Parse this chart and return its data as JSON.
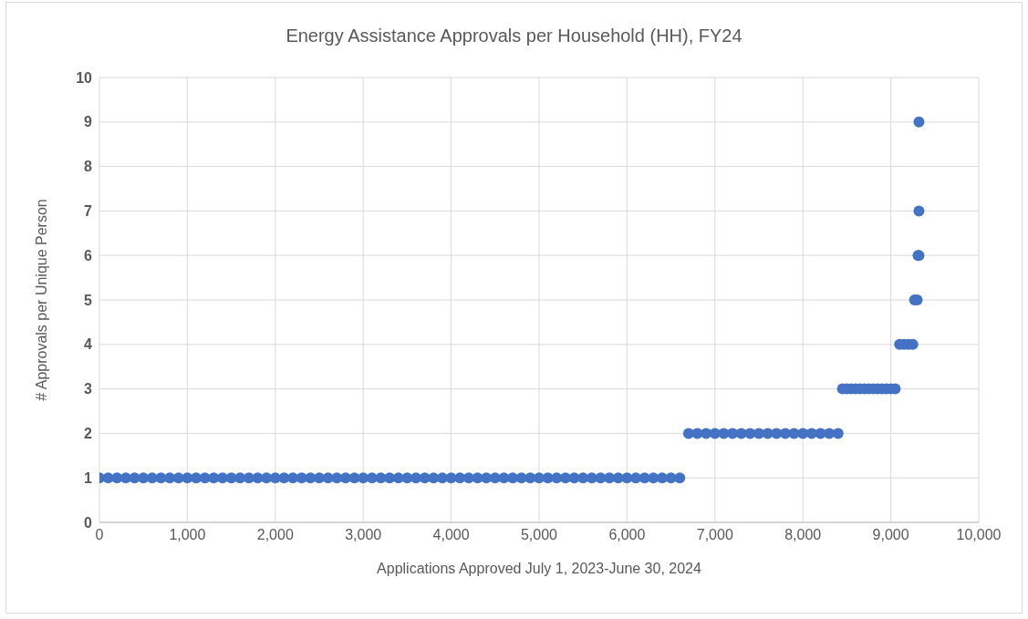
{
  "chart_data": {
    "type": "scatter",
    "title": "Energy Assistance Approvals per Household (HH), FY24",
    "xlabel": "Applications Approved July 1, 2023-June 30, 2024",
    "ylabel": "# Approvals per Unique Person",
    "x": [
      0,
      100,
      200,
      300,
      400,
      500,
      600,
      700,
      800,
      900,
      1000,
      1100,
      1200,
      1300,
      1400,
      1500,
      1600,
      1700,
      1800,
      1900,
      2000,
      2100,
      2200,
      2300,
      2400,
      2500,
      2600,
      2700,
      2800,
      2900,
      3000,
      3100,
      3200,
      3300,
      3400,
      3500,
      3600,
      3700,
      3800,
      3900,
      4000,
      4100,
      4200,
      4300,
      4400,
      4500,
      4600,
      4700,
      4800,
      4900,
      5000,
      5100,
      5200,
      5300,
      5400,
      5500,
      5600,
      5700,
      5800,
      5900,
      6000,
      6100,
      6200,
      6300,
      6400,
      6500,
      6600,
      6700,
      6800,
      6900,
      7000,
      7100,
      7200,
      7300,
      7400,
      7500,
      7600,
      7700,
      7800,
      7900,
      8000,
      8100,
      8200,
      8300,
      8400,
      8450,
      8500,
      8550,
      8600,
      8650,
      8700,
      8750,
      8800,
      8850,
      8900,
      8950,
      9000,
      9050,
      9100,
      9150,
      9200,
      9250,
      9270,
      9300,
      9310,
      9320,
      9320,
      9320
    ],
    "values": [
      1,
      1,
      1,
      1,
      1,
      1,
      1,
      1,
      1,
      1,
      1,
      1,
      1,
      1,
      1,
      1,
      1,
      1,
      1,
      1,
      1,
      1,
      1,
      1,
      1,
      1,
      1,
      1,
      1,
      1,
      1,
      1,
      1,
      1,
      1,
      1,
      1,
      1,
      1,
      1,
      1,
      1,
      1,
      1,
      1,
      1,
      1,
      1,
      1,
      1,
      1,
      1,
      1,
      1,
      1,
      1,
      1,
      1,
      1,
      1,
      1,
      1,
      1,
      1,
      1,
      1,
      1,
      2,
      2,
      2,
      2,
      2,
      2,
      2,
      2,
      2,
      2,
      2,
      2,
      2,
      2,
      2,
      2,
      2,
      2,
      3,
      3,
      3,
      3,
      3,
      3,
      3,
      3,
      3,
      3,
      3,
      3,
      3,
      4,
      4,
      4,
      4,
      5,
      5,
      6,
      6,
      7,
      9
    ],
    "color": "#4472c4",
    "marker": "circle",
    "xlim": [
      0,
      10000
    ],
    "xticks": [
      {
        "value": 0,
        "label": "0"
      },
      {
        "value": 1000,
        "label": "1,000"
      },
      {
        "value": 2000,
        "label": "2,000"
      },
      {
        "value": 3000,
        "label": "3,000"
      },
      {
        "value": 4000,
        "label": "4,000"
      },
      {
        "value": 5000,
        "label": "5,000"
      },
      {
        "value": 6000,
        "label": "6,000"
      },
      {
        "value": 7000,
        "label": "7,000"
      },
      {
        "value": 8000,
        "label": "8,000"
      },
      {
        "value": 9000,
        "label": "9,000"
      },
      {
        "value": 10000,
        "label": "10,000"
      }
    ],
    "ylim": [
      0,
      10
    ],
    "yticks": [
      0,
      1,
      2,
      3,
      4,
      5,
      6,
      7,
      8,
      9,
      10
    ],
    "grid": true
  }
}
